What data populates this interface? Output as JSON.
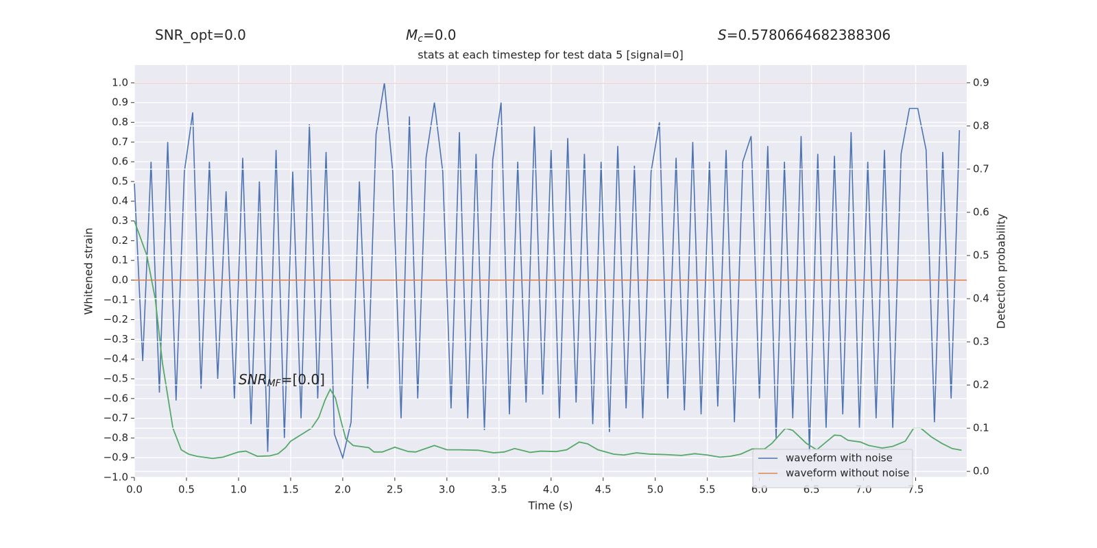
{
  "chart_data": {
    "type": "line",
    "title": "stats at each timestep for test data 5 [signal=0]",
    "xlabel": "Time (s)",
    "ylabel": "Whitened strain",
    "y2label": "Detection probability",
    "annotations": [
      [
        {
          "t": "SNR_opt=0.0"
        }
      ],
      [
        {
          "t": "M",
          "style": "italic"
        },
        {
          "t": "c",
          "style": "sub"
        },
        {
          "t": "=0.0"
        }
      ],
      [
        {
          "t": "S",
          "style": "italic"
        },
        {
          "t": "=0.5780664682388306"
        }
      ],
      [
        {
          "t": "SNR",
          "style": "italic"
        },
        {
          "t": "MF",
          "style": "sub"
        },
        {
          "t": "=[0.0]"
        }
      ]
    ],
    "xlim": [
      0,
      7.99
    ],
    "ylim": [
      -1.0,
      1.09
    ],
    "y2lim": [
      -0.014,
      0.941
    ],
    "xticks": [
      {
        "value": 0,
        "label": "0.0"
      },
      {
        "value": 0.5,
        "label": "0.5"
      },
      {
        "value": 1,
        "label": "1.0"
      },
      {
        "value": 1.5,
        "label": "1.5"
      },
      {
        "value": 2,
        "label": "2.0"
      },
      {
        "value": 2.5,
        "label": "2.5"
      },
      {
        "value": 3,
        "label": "3.0"
      },
      {
        "value": 3.5,
        "label": "3.5"
      },
      {
        "value": 4,
        "label": "4.0"
      },
      {
        "value": 4.5,
        "label": "4.5"
      },
      {
        "value": 5,
        "label": "5.0"
      },
      {
        "value": 5.5,
        "label": "5.5"
      },
      {
        "value": 6,
        "label": "6.0"
      },
      {
        "value": 6.5,
        "label": "6.5"
      },
      {
        "value": 7,
        "label": "7.0"
      },
      {
        "value": 7.5,
        "label": "7.5"
      }
    ],
    "yticks": [
      {
        "value": -1.0,
        "label": "−1.0"
      },
      {
        "value": -0.9,
        "label": "−0.9"
      },
      {
        "value": -0.8,
        "label": "−0.8"
      },
      {
        "value": -0.7,
        "label": "−0.7"
      },
      {
        "value": -0.6,
        "label": "−0.6"
      },
      {
        "value": -0.5,
        "label": "−0.5"
      },
      {
        "value": -0.4,
        "label": "−0.4"
      },
      {
        "value": -0.3,
        "label": "−0.3"
      },
      {
        "value": -0.2,
        "label": "−0.2"
      },
      {
        "value": -0.1,
        "label": "−0.1"
      },
      {
        "value": 0,
        "label": "0.0"
      },
      {
        "value": 0.1,
        "label": "0.1"
      },
      {
        "value": 0.2,
        "label": "0.2"
      },
      {
        "value": 0.3,
        "label": "0.3"
      },
      {
        "value": 0.4,
        "label": "0.4"
      },
      {
        "value": 0.5,
        "label": "0.5"
      },
      {
        "value": 0.6,
        "label": "0.6"
      },
      {
        "value": 0.7,
        "label": "0.7"
      },
      {
        "value": 0.8,
        "label": "0.8"
      },
      {
        "value": 0.9,
        "label": "0.9"
      },
      {
        "value": 1.0,
        "label": "1.0"
      }
    ],
    "y2ticks": [
      {
        "value": 0,
        "label": "0.0"
      },
      0.1,
      0.2,
      0.3,
      0.4,
      0.5,
      0.6,
      0.7,
      0.8,
      0.9
    ],
    "grid": true,
    "legend": "lower right",
    "hlines": [
      {
        "y": 1.0,
        "color": "#c44e52"
      }
    ],
    "series": [
      {
        "name": "waveform with noise",
        "color": "#4c72b0",
        "x": [
          0,
          0.08,
          0.16,
          0.24,
          0.32,
          0.4,
          0.48,
          0.56,
          0.64,
          0.72,
          0.8,
          0.88,
          0.96,
          1.04,
          1.12,
          1.2,
          1.28,
          1.36,
          1.44,
          1.52,
          1.6,
          1.68,
          1.76,
          1.84,
          1.92,
          2.0,
          2.08,
          2.16,
          2.24,
          2.32,
          2.4,
          2.48,
          2.56,
          2.64,
          2.72,
          2.8,
          2.88,
          2.96,
          3.04,
          3.12,
          3.2,
          3.28,
          3.36,
          3.44,
          3.52,
          3.6,
          3.68,
          3.76,
          3.84,
          3.92,
          4.0,
          4.08,
          4.16,
          4.24,
          4.32,
          4.4,
          4.48,
          4.56,
          4.64,
          4.72,
          4.8,
          4.88,
          4.96,
          5.04,
          5.12,
          5.2,
          5.28,
          5.36,
          5.44,
          5.52,
          5.6,
          5.68,
          5.76,
          5.84,
          5.92,
          6.0,
          6.08,
          6.16,
          6.24,
          6.32,
          6.4,
          6.48,
          6.56,
          6.64,
          6.72,
          6.8,
          6.88,
          6.96,
          7.04,
          7.12,
          7.2,
          7.28,
          7.36,
          7.44,
          7.52,
          7.6,
          7.68,
          7.76,
          7.84,
          7.92
        ],
        "values": [
          0.49,
          -0.41,
          0.6,
          -0.57,
          0.7,
          -0.61,
          0.55,
          0.85,
          -0.55,
          0.6,
          -0.5,
          0.45,
          -0.6,
          0.62,
          -0.73,
          0.5,
          -0.87,
          0.66,
          -0.8,
          0.55,
          -0.7,
          0.79,
          -0.6,
          0.65,
          -0.78,
          -0.9,
          -0.72,
          0.5,
          -0.55,
          0.74,
          1.0,
          0.55,
          -0.7,
          0.83,
          -0.6,
          0.62,
          0.9,
          0.55,
          -0.65,
          0.75,
          -0.7,
          0.64,
          -0.76,
          0.61,
          0.9,
          -0.68,
          0.6,
          -0.62,
          0.78,
          -0.58,
          0.66,
          -0.7,
          0.72,
          -0.62,
          0.64,
          -0.73,
          0.6,
          -0.77,
          0.68,
          -0.65,
          0.58,
          -0.7,
          0.55,
          0.8,
          -0.6,
          0.62,
          -0.66,
          0.7,
          -0.68,
          0.6,
          -0.64,
          0.66,
          -0.72,
          0.6,
          0.73,
          -0.6,
          0.68,
          -0.8,
          0.6,
          -0.7,
          0.73,
          -0.87,
          0.64,
          -0.75,
          0.63,
          -0.68,
          0.75,
          -0.75,
          0.6,
          -0.7,
          0.66,
          -0.75,
          0.64,
          0.87,
          0.87,
          0.66,
          -0.72,
          0.65,
          -0.6,
          0.76
        ]
      },
      {
        "name": "waveform without noise",
        "color": "#dd8452",
        "x": [
          0,
          7.99
        ],
        "values": [
          0,
          0
        ]
      },
      {
        "color": "#55a868",
        "axis": "y2",
        "x": [
          0,
          0.12,
          0.2,
          0.27,
          0.37,
          0.45,
          0.52,
          0.6,
          0.75,
          0.85,
          1.0,
          1.07,
          1.18,
          1.3,
          1.38,
          1.45,
          1.5,
          1.6,
          1.7,
          1.77,
          1.83,
          1.88,
          1.93,
          1.98,
          2.03,
          2.1,
          2.25,
          2.3,
          2.38,
          2.5,
          2.63,
          2.7,
          2.88,
          3.0,
          3.12,
          3.3,
          3.45,
          3.55,
          3.65,
          3.8,
          3.9,
          4.05,
          4.15,
          4.27,
          4.35,
          4.45,
          4.6,
          4.7,
          4.82,
          4.95,
          5.1,
          5.25,
          5.38,
          5.5,
          5.62,
          5.72,
          5.82,
          5.93,
          6.05,
          6.12,
          6.25,
          6.32,
          6.45,
          6.55,
          6.72,
          6.78,
          6.85,
          6.97,
          7.05,
          7.18,
          7.28,
          7.4,
          7.48,
          7.55,
          7.65,
          7.75,
          7.85,
          7.94
        ],
        "values": [
          0.58,
          0.5,
          0.4,
          0.25,
          0.1,
          0.05,
          0.04,
          0.035,
          0.03,
          0.033,
          0.045,
          0.047,
          0.035,
          0.036,
          0.041,
          0.055,
          0.07,
          0.085,
          0.1,
          0.125,
          0.165,
          0.19,
          0.17,
          0.12,
          0.075,
          0.06,
          0.055,
          0.045,
          0.045,
          0.056,
          0.046,
          0.045,
          0.06,
          0.05,
          0.05,
          0.049,
          0.043,
          0.045,
          0.053,
          0.044,
          0.047,
          0.046,
          0.05,
          0.068,
          0.064,
          0.05,
          0.04,
          0.038,
          0.043,
          0.04,
          0.039,
          0.037,
          0.041,
          0.038,
          0.033,
          0.035,
          0.04,
          0.052,
          0.052,
          0.065,
          0.1,
          0.095,
          0.065,
          0.05,
          0.084,
          0.083,
          0.072,
          0.068,
          0.06,
          0.054,
          0.058,
          0.07,
          0.1,
          0.1,
          0.08,
          0.065,
          0.053,
          0.049
        ]
      }
    ]
  }
}
